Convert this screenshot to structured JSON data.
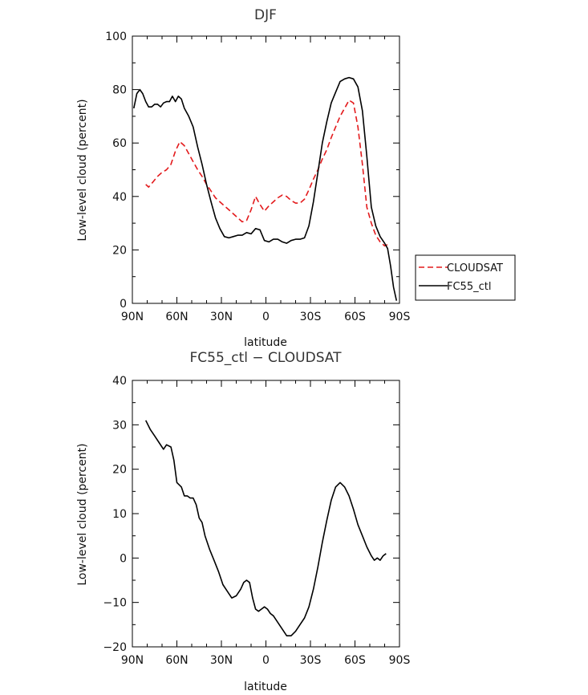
{
  "chart_data": [
    {
      "type": "line",
      "title": "DJF",
      "xlabel": "latitude",
      "ylabel": "Low-level cloud (percent)",
      "xlim": [
        90,
        -90
      ],
      "ylim": [
        0,
        100
      ],
      "xticks": [
        90,
        60,
        30,
        0,
        -30,
        -60,
        -90
      ],
      "xtick_labels": [
        "90N",
        "60N",
        "30N",
        "0",
        "30S",
        "60S",
        "90S"
      ],
      "yticks": [
        0,
        20,
        40,
        60,
        80,
        100
      ],
      "ytick_labels": [
        "0",
        "20",
        "40",
        "60",
        "80",
        "100"
      ],
      "legend_position": "right",
      "series": [
        {
          "name": "CLOUDSAT",
          "color": "#e31a1c",
          "dash": "dashed",
          "x": [
            81,
            79,
            76,
            73,
            70,
            67,
            64,
            61,
            58,
            55,
            52,
            49,
            46,
            43,
            40,
            37,
            34,
            31,
            28,
            25,
            22,
            19,
            16,
            13,
            10,
            7,
            4,
            1,
            -2,
            -5,
            -8,
            -11,
            -14,
            -17,
            -20,
            -23,
            -26,
            -29,
            -32,
            -35,
            -38,
            -41,
            -44,
            -47,
            -50,
            -53,
            -56,
            -59,
            -62,
            -65,
            -68,
            -71,
            -74,
            -77,
            -80,
            -82
          ],
          "y": [
            44.5,
            43.5,
            45.5,
            47.5,
            49,
            50,
            52,
            57,
            60.5,
            59,
            56,
            53,
            50,
            47.5,
            44.5,
            42,
            39.5,
            38,
            36.5,
            35,
            33.5,
            32,
            30.5,
            31,
            35,
            40,
            37,
            34.5,
            36.5,
            38,
            39.5,
            40.5,
            40,
            38.5,
            37.5,
            37.5,
            39,
            42.5,
            46.5,
            50,
            54,
            57.5,
            62,
            66,
            70,
            73,
            76,
            75,
            66,
            52,
            36,
            30,
            25.5,
            23,
            21.5,
            22
          ]
        },
        {
          "name": "FC55_ctl",
          "color": "#000000",
          "dash": "solid",
          "x": [
            89,
            87,
            85,
            83,
            81,
            79,
            77,
            75,
            73,
            71,
            69,
            67,
            65,
            63,
            61,
            59,
            57,
            55,
            52,
            49,
            46,
            43,
            40,
            37,
            34,
            31,
            28,
            25,
            22,
            19,
            16,
            13,
            10,
            7,
            4,
            1,
            -2,
            -5,
            -8,
            -11,
            -14,
            -17,
            -20,
            -23,
            -26,
            -29,
            -32,
            -35,
            -38,
            -41,
            -44,
            -47,
            -50,
            -53,
            -56,
            -59,
            -62,
            -65,
            -68,
            -71,
            -74,
            -77,
            -80,
            -82,
            -84,
            -86,
            -88
          ],
          "y": [
            73,
            78.5,
            80,
            78.5,
            75.5,
            73.5,
            73.5,
            74.5,
            74.5,
            73.5,
            75,
            75.5,
            75.5,
            77.5,
            75.5,
            77.5,
            76.5,
            73,
            70,
            66,
            58.5,
            52,
            44.5,
            38,
            32,
            28,
            25,
            24.5,
            25,
            25.5,
            25.5,
            26.5,
            26,
            28,
            27.5,
            23.5,
            23,
            24,
            24,
            23,
            22.5,
            23.5,
            24,
            24,
            24.5,
            29,
            38,
            49,
            60,
            68,
            75,
            79,
            83,
            84,
            84.5,
            84,
            81,
            72,
            55,
            36,
            29,
            25,
            22.5,
            20.5,
            14,
            6,
            1
          ]
        }
      ]
    },
    {
      "type": "line",
      "title": "FC55_ctl − CLOUDSAT",
      "xlabel": "latitude",
      "ylabel": "Low-level cloud (percent)",
      "xlim": [
        90,
        -90
      ],
      "ylim": [
        -20,
        40
      ],
      "xticks": [
        90,
        60,
        30,
        0,
        -30,
        -60,
        -90
      ],
      "xtick_labels": [
        "90N",
        "60N",
        "30N",
        "0",
        "30S",
        "60S",
        "90S"
      ],
      "yticks": [
        -20,
        -10,
        0,
        10,
        20,
        30,
        40
      ],
      "ytick_labels": [
        "−20",
        "−10",
        "0",
        "10",
        "20",
        "30",
        "40"
      ],
      "series": [
        {
          "color": "#000000",
          "dash": "solid",
          "x": [
            81,
            78,
            75,
            72,
            69,
            67,
            64,
            62,
            60,
            57,
            55,
            53,
            51,
            49,
            47,
            45,
            43,
            41,
            38,
            35,
            32,
            29,
            26,
            23,
            20,
            17,
            15,
            13,
            11,
            9,
            7,
            5,
            3,
            1,
            -1,
            -3,
            -5,
            -8,
            -11,
            -14,
            -17,
            -20,
            -23,
            -26,
            -29,
            -32,
            -35,
            -38,
            -41,
            -44,
            -47,
            -50,
            -53,
            -56,
            -59,
            -62,
            -65,
            -68,
            -71,
            -73,
            -75,
            -77,
            -79,
            -81
          ],
          "y": [
            31,
            29,
            27.5,
            26,
            24.5,
            25.5,
            25,
            22,
            17,
            16,
            14,
            14,
            13.5,
            13.5,
            12,
            9,
            8,
            5,
            2,
            -0.5,
            -3,
            -6,
            -7.5,
            -9,
            -8.5,
            -7,
            -5.5,
            -5,
            -5.5,
            -9,
            -11.5,
            -12,
            -11.5,
            -11,
            -11.5,
            -12.5,
            -13,
            -14.5,
            -16,
            -17.5,
            -17.5,
            -16.5,
            -15,
            -13.5,
            -11,
            -7,
            -2,
            3.5,
            8.5,
            13,
            16,
            17,
            16,
            14,
            11,
            7.5,
            5,
            2.5,
            0.5,
            -0.5,
            0,
            -0.5,
            0.5,
            1
          ]
        }
      ]
    }
  ]
}
